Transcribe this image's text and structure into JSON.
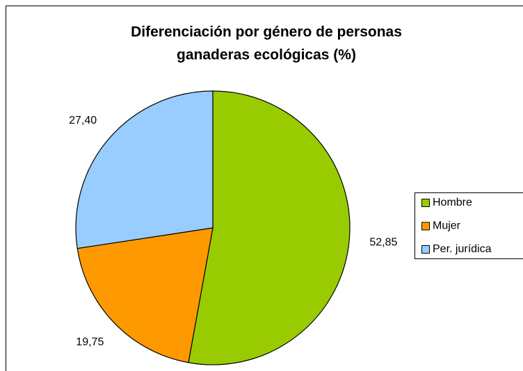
{
  "chart_data": {
    "type": "pie",
    "title": [
      "Diferenciación por género de personas",
      "ganaderas ecológicas (%)"
    ],
    "categories": [
      "Hombre",
      "Mujer",
      "Per. jurídica"
    ],
    "values": [
      52.85,
      19.75,
      27.4
    ],
    "value_labels": [
      "52,85",
      "19,75",
      "27,40"
    ],
    "colors": [
      "#99cc00",
      "#ff9900",
      "#99ccff"
    ],
    "legend": "right"
  }
}
